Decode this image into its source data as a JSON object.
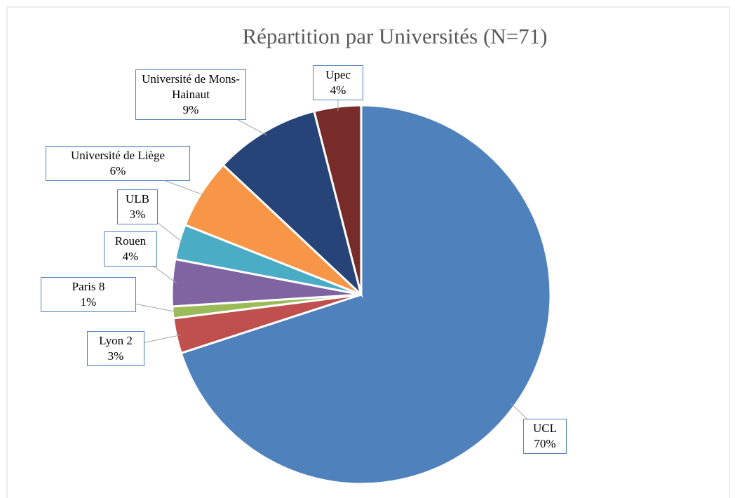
{
  "chart_data": {
    "type": "pie",
    "title": "Répartition par Universités (N=71)",
    "categories": [
      "UCL",
      "Lyon 2",
      "Paris 8",
      "Rouen",
      "ULB",
      "Université de Liège",
      "Université de Mons-Hainaut",
      "Upec"
    ],
    "values": [
      70,
      3,
      1,
      4,
      3,
      6,
      9,
      4
    ],
    "value_labels": [
      "70%",
      "3%",
      "1%",
      "4%",
      "3%",
      "6%",
      "9%",
      "4%"
    ],
    "colors": [
      "#4f81bd",
      "#c0504d",
      "#9bbb59",
      "#8064a2",
      "#4bacc6",
      "#f79646",
      "#264478",
      "#772c2a"
    ]
  }
}
